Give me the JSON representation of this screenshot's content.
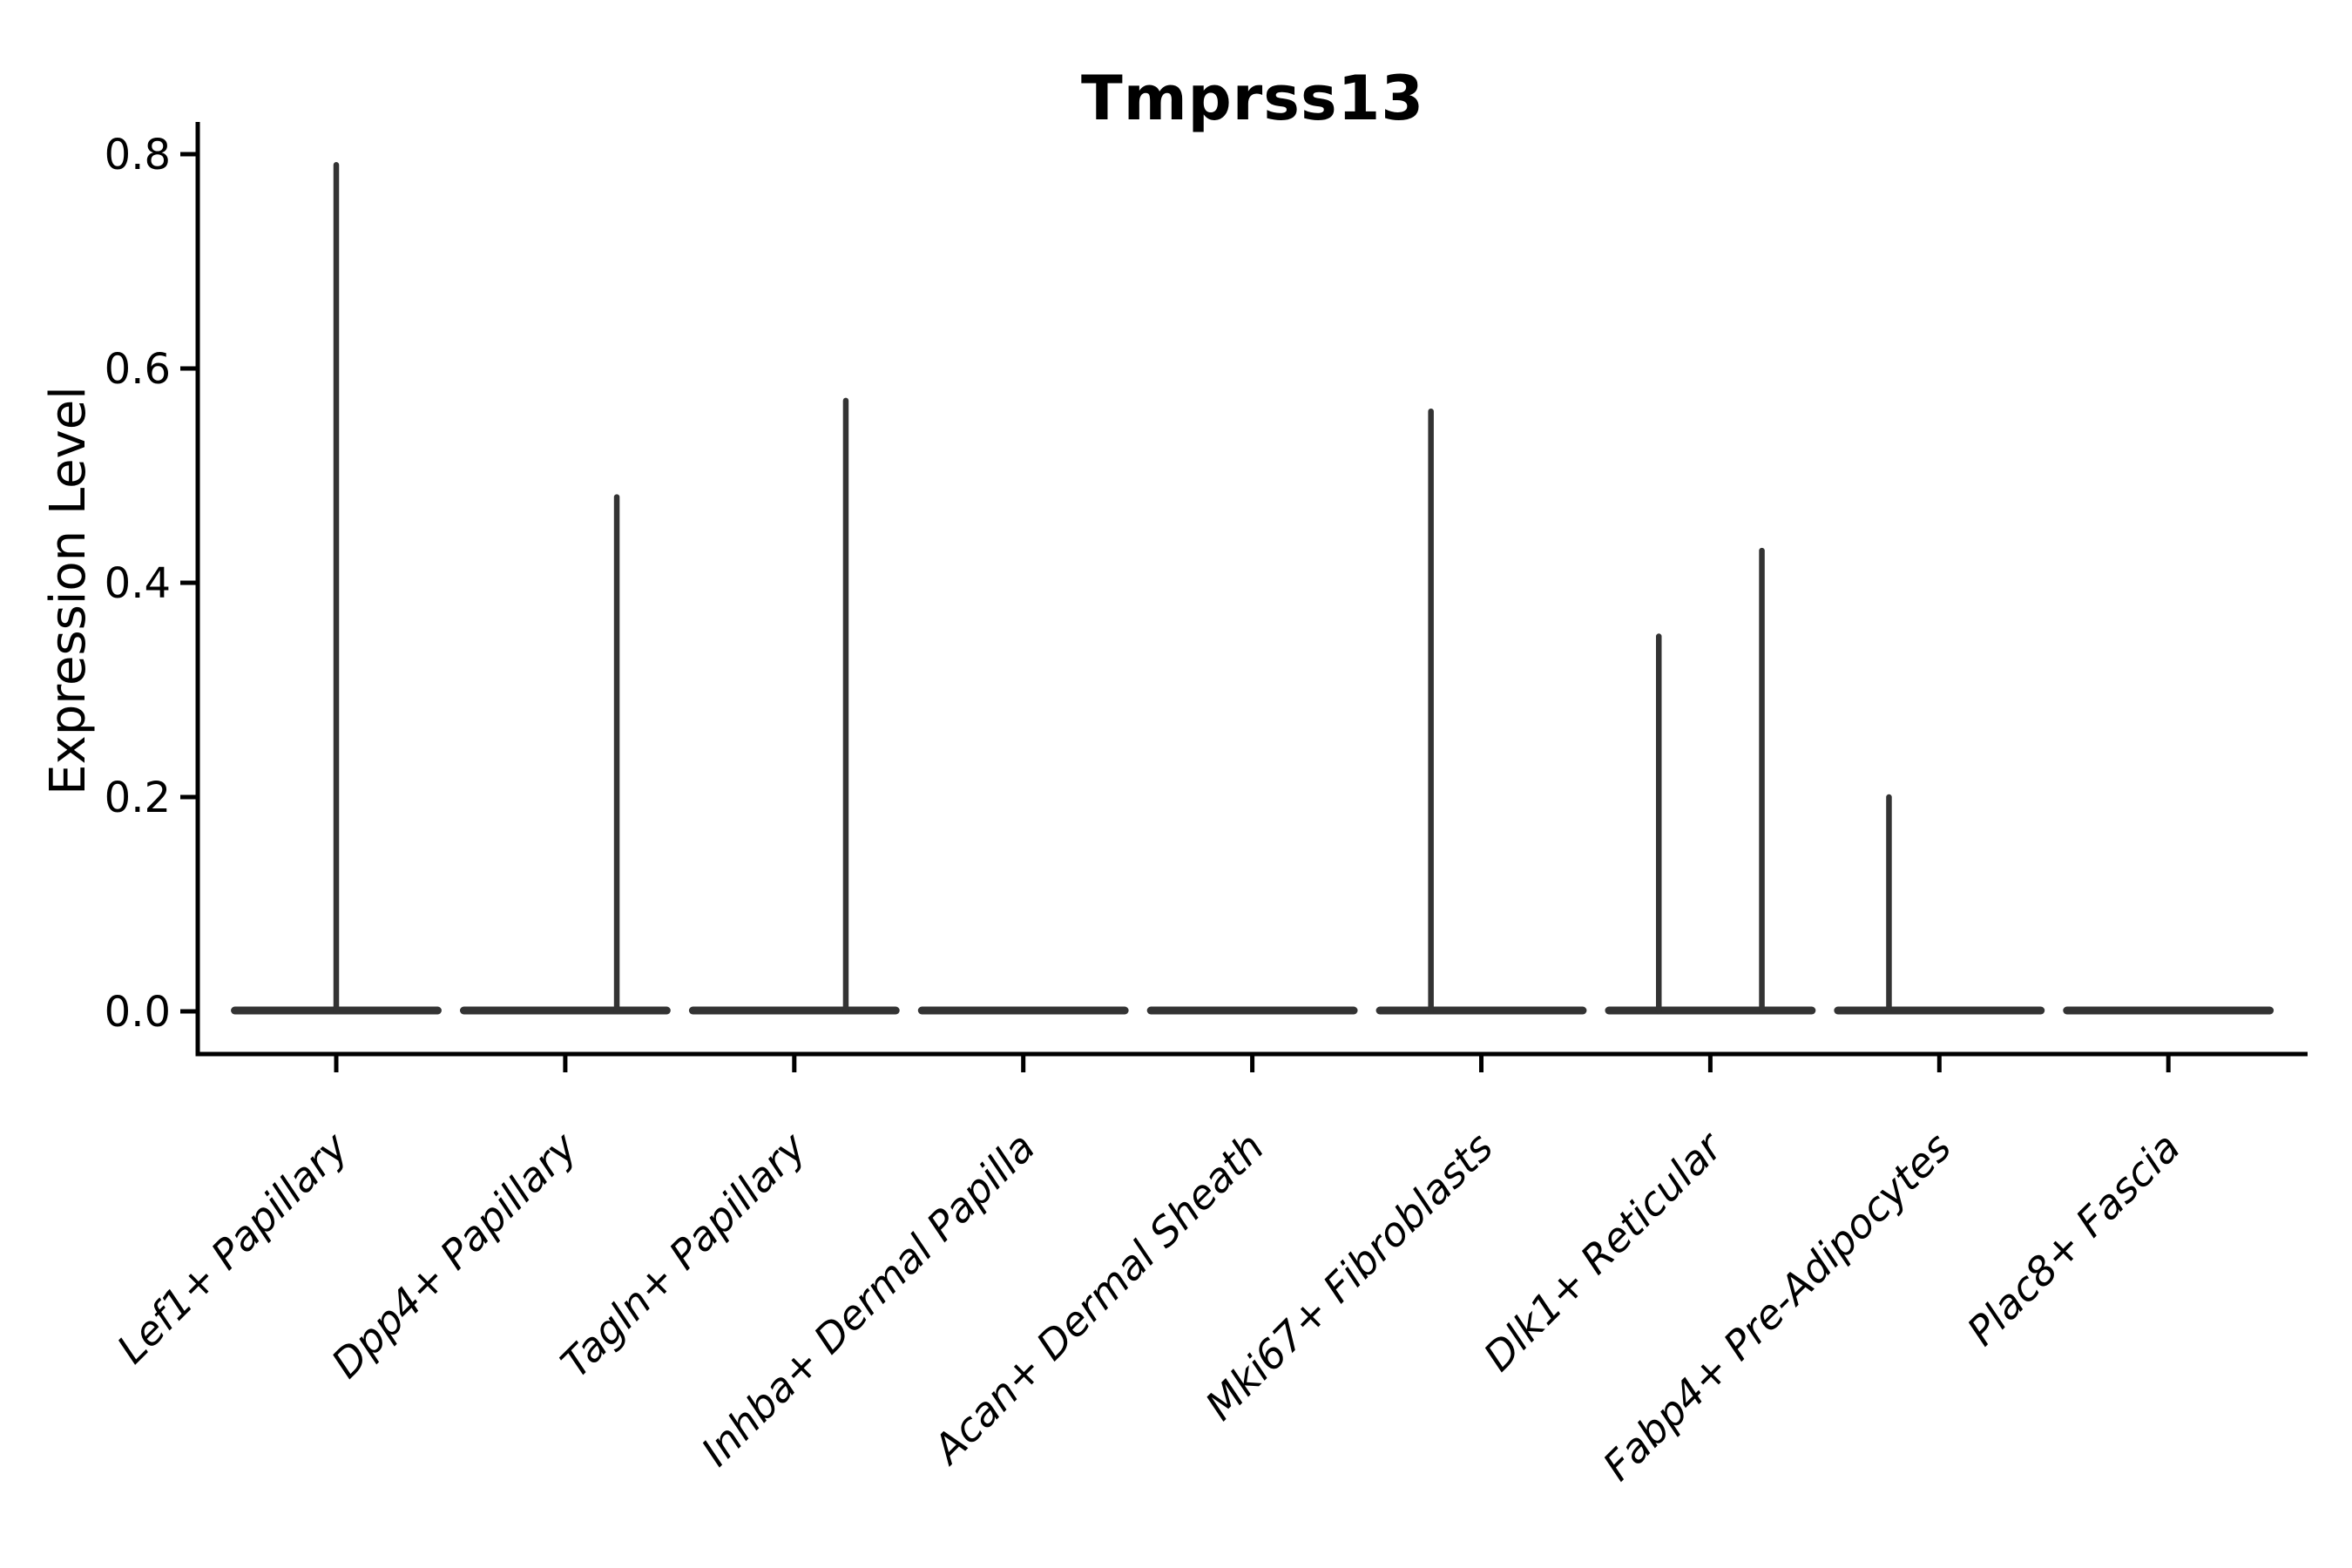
{
  "chart_data": {
    "type": "violin",
    "title": "Tmprss13",
    "ylabel": "Expression Level",
    "xlabel": "",
    "grid": false,
    "legend_position": "none",
    "ylim": [
      -0.04,
      0.83
    ],
    "yticks": [
      "0.0",
      "0.2",
      "0.4",
      "0.6",
      "0.8"
    ],
    "ytick_values": [
      0.0,
      0.2,
      0.4,
      0.6,
      0.8
    ],
    "categories": [
      "Lef1+ Papillary",
      "Dpp4+ Papillary",
      "Tagln+ Papillary",
      "Inhba+ Dermal Papilla",
      "Acan+ Dermal Sheath",
      "Mki67+ Fibroblasts",
      "Dlk1+ Reticular",
      "Fabp4+ Pre-Adipocytes",
      "Plac8+ Fascia"
    ],
    "violins": [
      {
        "category": "Lef1+ Papillary",
        "base_value": 0.0,
        "spikes": [
          {
            "offset": 0.0,
            "max": 0.79
          }
        ]
      },
      {
        "category": "Dpp4+ Papillary",
        "base_value": 0.0,
        "spikes": [
          {
            "offset": 0.225,
            "max": 0.48
          }
        ]
      },
      {
        "category": "Tagln+ Papillary",
        "base_value": 0.0,
        "spikes": [
          {
            "offset": 0.225,
            "max": 0.57
          }
        ]
      },
      {
        "category": "Inhba+ Dermal Papilla",
        "base_value": 0.0,
        "spikes": []
      },
      {
        "category": "Acan+ Dermal Sheath",
        "base_value": 0.0,
        "spikes": []
      },
      {
        "category": "Mki67+ Fibroblasts",
        "base_value": 0.0,
        "spikes": [
          {
            "offset": -0.22,
            "max": 0.56
          }
        ]
      },
      {
        "category": "Dlk1+ Reticular",
        "base_value": 0.0,
        "spikes": [
          {
            "offset": -0.225,
            "max": 0.35
          },
          {
            "offset": 0.225,
            "max": 0.43
          }
        ]
      },
      {
        "category": "Fabp4+ Pre-Adipocytes",
        "base_value": 0.0,
        "spikes": [
          {
            "offset": -0.22,
            "max": 0.2
          }
        ]
      },
      {
        "category": "Plac8+ Fascia",
        "base_value": 0.0,
        "spikes": []
      }
    ],
    "violin_width_frac": 0.92,
    "colors": {
      "violin_stroke": "#333333",
      "axis": "#000000",
      "text": "#000000",
      "background": "#ffffff"
    }
  }
}
